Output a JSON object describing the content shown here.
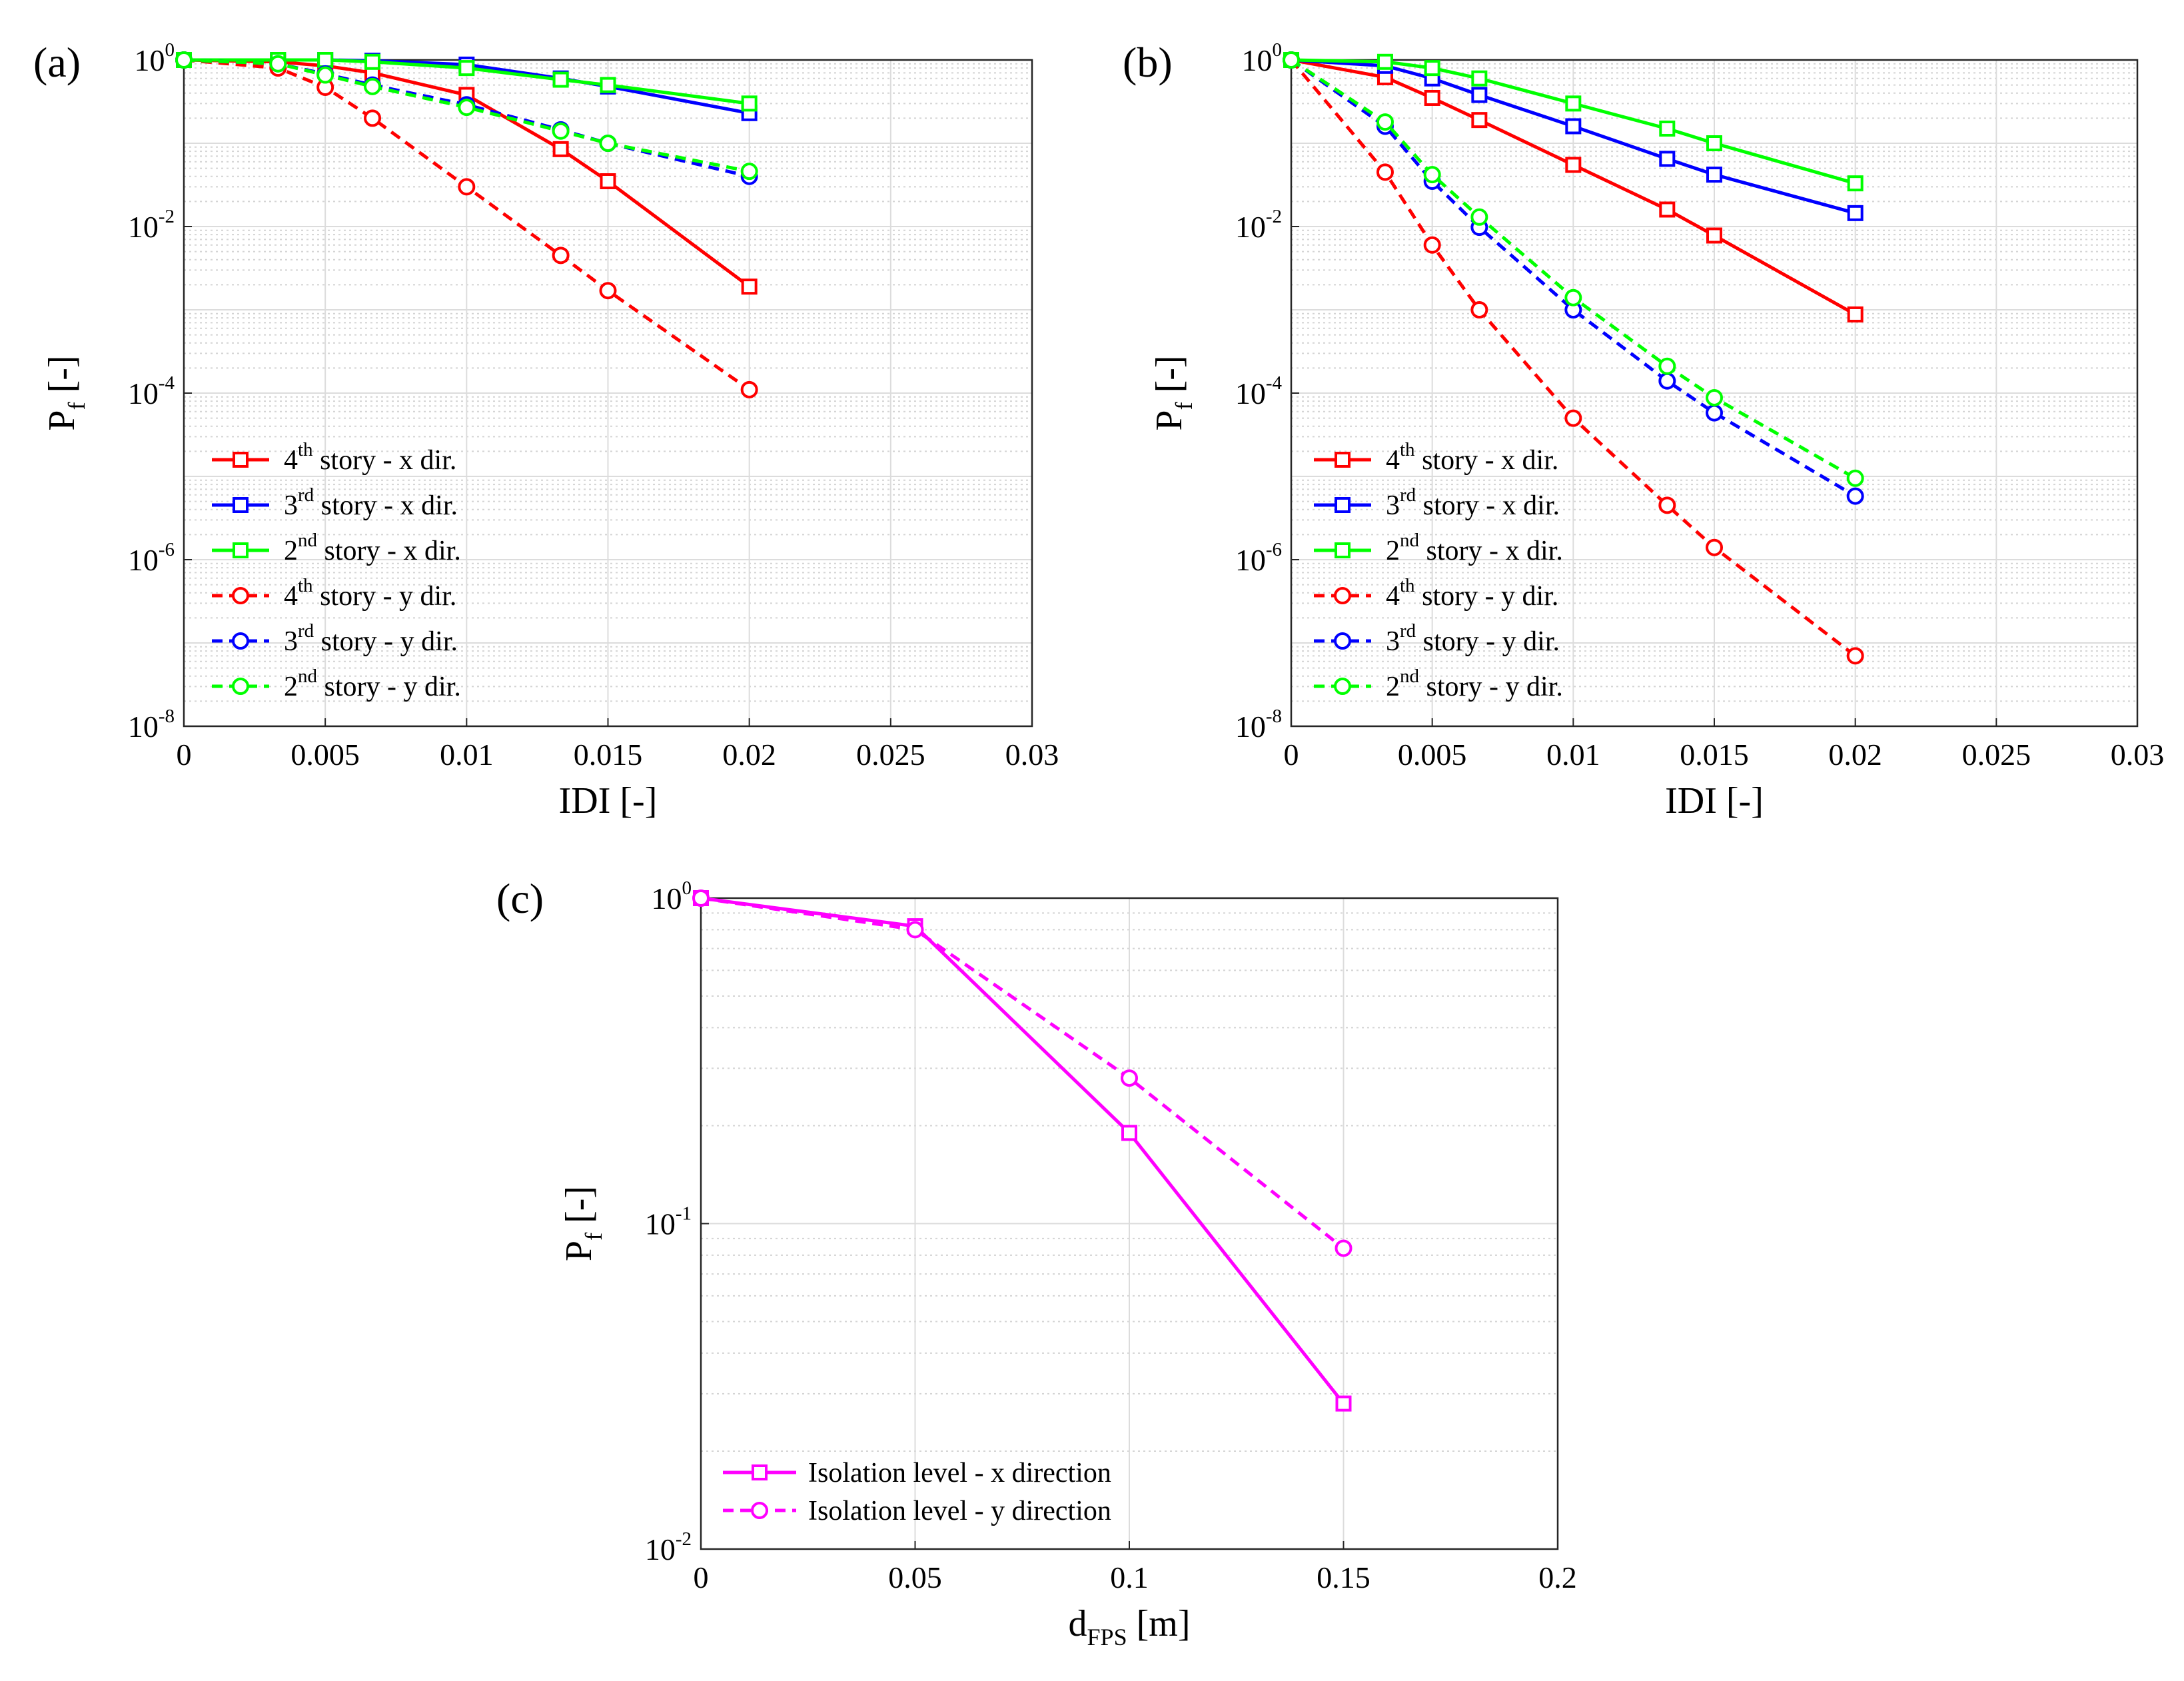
{
  "panels": [
    {
      "id": "a",
      "label": "(a)",
      "xlabel": "IDI [-]",
      "ylabel_main": "P",
      "ylabel_sub": "f",
      "ylabel_unit": " [-]",
      "xlim": [
        0,
        0.03
      ],
      "ylim_exp": [
        -8,
        0
      ],
      "x_ticks": [
        "0",
        "0.005",
        "0.01",
        "0.015",
        "0.02",
        "0.025",
        "0.03"
      ],
      "y_ticks": [
        {
          "base": "10",
          "exp": "0"
        },
        {
          "base": "10",
          "exp": "-2"
        },
        {
          "base": "10",
          "exp": "-4"
        },
        {
          "base": "10",
          "exp": "-6"
        },
        {
          "base": "10",
          "exp": "-8"
        }
      ],
      "legend": [
        {
          "pre": "4",
          "sup": "th",
          "post": " story - x dir."
        },
        {
          "pre": "3",
          "sup": "rd",
          "post": " story - x dir."
        },
        {
          "pre": "2",
          "sup": "nd",
          "post": " story - x dir."
        },
        {
          "pre": "4",
          "sup": "th",
          "post": " story - y dir."
        },
        {
          "pre": "3",
          "sup": "rd",
          "post": " story - y dir."
        },
        {
          "pre": "2",
          "sup": "nd",
          "post": " story - y dir."
        }
      ]
    },
    {
      "id": "b",
      "label": "(b)",
      "xlabel": "IDI [-]",
      "ylabel_main": "P",
      "ylabel_sub": "f",
      "ylabel_unit": " [-]",
      "xlim": [
        0,
        0.03
      ],
      "ylim_exp": [
        -8,
        0
      ],
      "x_ticks": [
        "0",
        "0.005",
        "0.01",
        "0.015",
        "0.02",
        "0.025",
        "0.03"
      ],
      "y_ticks": [
        {
          "base": "10",
          "exp": "0"
        },
        {
          "base": "10",
          "exp": "-2"
        },
        {
          "base": "10",
          "exp": "-4"
        },
        {
          "base": "10",
          "exp": "-6"
        },
        {
          "base": "10",
          "exp": "-8"
        }
      ],
      "legend": [
        {
          "pre": "4",
          "sup": "th",
          "post": " story - x dir."
        },
        {
          "pre": "3",
          "sup": "rd",
          "post": " story - x dir."
        },
        {
          "pre": "2",
          "sup": "nd",
          "post": " story - x dir."
        },
        {
          "pre": "4",
          "sup": "th",
          "post": " story - y dir."
        },
        {
          "pre": "3",
          "sup": "rd",
          "post": " story - y dir."
        },
        {
          "pre": "2",
          "sup": "nd",
          "post": " story - y dir."
        }
      ]
    },
    {
      "id": "c",
      "label": "(c)",
      "xlabel_main": "d",
      "xlabel_sub": "FPS",
      "xlabel_unit": " [m]",
      "ylabel_main": "P",
      "ylabel_sub": "f",
      "ylabel_unit": " [-]",
      "xlim": [
        0,
        0.2
      ],
      "ylim_exp": [
        -2,
        0
      ],
      "x_ticks": [
        "0",
        "0.05",
        "0.1",
        "0.15",
        "0.2"
      ],
      "y_ticks": [
        {
          "base": "10",
          "exp": "0"
        },
        {
          "base": "10",
          "exp": "-1"
        },
        {
          "base": "10",
          "exp": "-2"
        }
      ],
      "legend": [
        {
          "pre": "Isolation level - x direction",
          "sup": "",
          "post": ""
        },
        {
          "pre": "Isolation level - y direction",
          "sup": "",
          "post": ""
        }
      ]
    }
  ],
  "chart_data": [
    {
      "type": "line",
      "panel": "(a)",
      "xlabel": "IDI [-]",
      "ylabel": "Pf [-]",
      "yscale": "log",
      "xlim": [
        0,
        0.03
      ],
      "ylim": [
        1e-08,
        1
      ],
      "grid": true,
      "legend_position": "bottom-left",
      "series": [
        {
          "name": "4th story - x dir.",
          "color": "#ff0000",
          "dash": false,
          "marker": "square",
          "x": [
            0,
            0.00333,
            0.005,
            0.00667,
            0.01,
            0.01333,
            0.015,
            0.02
          ],
          "y": [
            1.0,
            0.95,
            0.85,
            0.7,
            0.38,
            0.085,
            0.035,
            0.0019
          ]
        },
        {
          "name": "3rd story - x dir.",
          "color": "#0000ff",
          "dash": false,
          "marker": "square",
          "x": [
            0,
            0.00333,
            0.005,
            0.00667,
            0.01,
            0.01333,
            0.015,
            0.02
          ],
          "y": [
            1.0,
            1.0,
            1.0,
            0.98,
            0.88,
            0.6,
            0.48,
            0.23
          ]
        },
        {
          "name": "2nd story - x dir.",
          "color": "#00ff00",
          "dash": false,
          "marker": "square",
          "x": [
            0,
            0.00333,
            0.005,
            0.00667,
            0.01,
            0.01333,
            0.015,
            0.02
          ],
          "y": [
            1.0,
            1.0,
            1.0,
            0.95,
            0.8,
            0.58,
            0.5,
            0.3
          ]
        },
        {
          "name": "4th story - y dir.",
          "color": "#ff0000",
          "dash": true,
          "marker": "circle",
          "x": [
            0,
            0.00333,
            0.005,
            0.00667,
            0.01,
            0.01333,
            0.015,
            0.02
          ],
          "y": [
            1.0,
            0.8,
            0.47,
            0.2,
            0.03,
            0.0045,
            0.0017,
            0.00011
          ]
        },
        {
          "name": "3rd story - y dir.",
          "color": "#0000ff",
          "dash": true,
          "marker": "circle",
          "x": [
            0,
            0.00333,
            0.005,
            0.00667,
            0.01,
            0.01333,
            0.015,
            0.02
          ],
          "y": [
            1.0,
            0.9,
            0.68,
            0.5,
            0.29,
            0.145,
            0.1,
            0.04
          ]
        },
        {
          "name": "2nd story - y dir.",
          "color": "#00ff00",
          "dash": true,
          "marker": "circle",
          "x": [
            0,
            0.00333,
            0.005,
            0.00667,
            0.01,
            0.01333,
            0.015,
            0.02
          ],
          "y": [
            1.0,
            0.9,
            0.66,
            0.48,
            0.27,
            0.14,
            0.1,
            0.046
          ]
        }
      ]
    },
    {
      "type": "line",
      "panel": "(b)",
      "xlabel": "IDI [-]",
      "ylabel": "Pf [-]",
      "yscale": "log",
      "xlim": [
        0,
        0.03
      ],
      "ylim": [
        1e-08,
        1
      ],
      "grid": true,
      "legend_position": "bottom-left",
      "series": [
        {
          "name": "4th story - x dir.",
          "color": "#ff0000",
          "dash": false,
          "marker": "square",
          "x": [
            0,
            0.00333,
            0.005,
            0.00667,
            0.01,
            0.01333,
            0.015,
            0.02
          ],
          "y": [
            1.0,
            0.62,
            0.35,
            0.19,
            0.055,
            0.016,
            0.0078,
            0.00088
          ]
        },
        {
          "name": "3rd story - x dir.",
          "color": "#0000ff",
          "dash": false,
          "marker": "square",
          "x": [
            0,
            0.00333,
            0.005,
            0.00667,
            0.01,
            0.01333,
            0.015,
            0.02
          ],
          "y": [
            1.0,
            0.85,
            0.6,
            0.38,
            0.16,
            0.065,
            0.042,
            0.0145
          ]
        },
        {
          "name": "2nd story - x dir.",
          "color": "#00ff00",
          "dash": false,
          "marker": "square",
          "x": [
            0,
            0.00333,
            0.005,
            0.00667,
            0.01,
            0.01333,
            0.015,
            0.02
          ],
          "y": [
            1.0,
            0.95,
            0.8,
            0.6,
            0.3,
            0.15,
            0.1,
            0.033
          ]
        },
        {
          "name": "4th story - y dir.",
          "color": "#ff0000",
          "dash": true,
          "marker": "circle",
          "x": [
            0,
            0.00333,
            0.005,
            0.00667,
            0.01,
            0.01333,
            0.015,
            0.02
          ],
          "y": [
            1.0,
            0.045,
            0.006,
            0.001,
            5e-05,
            4.5e-06,
            1.4e-06,
            7e-08
          ]
        },
        {
          "name": "3rd story - y dir.",
          "color": "#0000ff",
          "dash": true,
          "marker": "circle",
          "x": [
            0,
            0.00333,
            0.005,
            0.00667,
            0.01,
            0.01333,
            0.015,
            0.02
          ],
          "y": [
            1.0,
            0.16,
            0.035,
            0.0098,
            0.001,
            0.00014,
            5.8e-05,
            5.8e-06
          ]
        },
        {
          "name": "2nd story - y dir.",
          "color": "#00ff00",
          "dash": true,
          "marker": "circle",
          "x": [
            0,
            0.00333,
            0.005,
            0.00667,
            0.01,
            0.01333,
            0.015,
            0.02
          ],
          "y": [
            1.0,
            0.18,
            0.042,
            0.013,
            0.0014,
            0.00021,
            8.8e-05,
            9.5e-06
          ]
        }
      ]
    },
    {
      "type": "line",
      "panel": "(c)",
      "xlabel": "dFPS [m]",
      "ylabel": "Pf [-]",
      "yscale": "log",
      "xlim": [
        0,
        0.2
      ],
      "ylim": [
        0.01,
        1
      ],
      "grid": true,
      "legend_position": "bottom-left",
      "series": [
        {
          "name": "Isolation level - x direction",
          "color": "#ff00ff",
          "dash": false,
          "marker": "square",
          "x": [
            0,
            0.05,
            0.1,
            0.15
          ],
          "y": [
            1.0,
            0.82,
            0.19,
            0.028
          ]
        },
        {
          "name": "Isolation level - y direction",
          "color": "#ff00ff",
          "dash": true,
          "marker": "circle",
          "x": [
            0,
            0.05,
            0.1,
            0.15
          ],
          "y": [
            1.0,
            0.8,
            0.28,
            0.084
          ]
        }
      ]
    }
  ]
}
